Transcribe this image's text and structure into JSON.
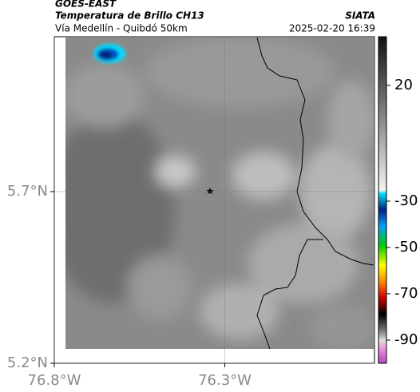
{
  "header": {
    "title": "GOES-EAST",
    "subtitle": "Temperatura de Brillo CH13",
    "source": "SIATA",
    "route": "Vía Medellín - Quibdó 50km",
    "datetime": "2025-02-20 16:39"
  },
  "map": {
    "xlim": [
      -76.8,
      -75.861
    ],
    "ylim": [
      5.2,
      6.151
    ],
    "xticks": [
      {
        "value": -76.8,
        "label": "76.8°W"
      },
      {
        "value": -76.3,
        "label": "76.3°W"
      }
    ],
    "yticks": [
      {
        "value": 5.2,
        "label": "5.2°N"
      },
      {
        "value": 5.7,
        "label": "5.7°N"
      }
    ],
    "grid": true
  },
  "colorbar": {
    "clim": [
      -100,
      41
    ],
    "ticks": [
      20,
      -30,
      -50,
      -70,
      -90
    ]
  }
}
